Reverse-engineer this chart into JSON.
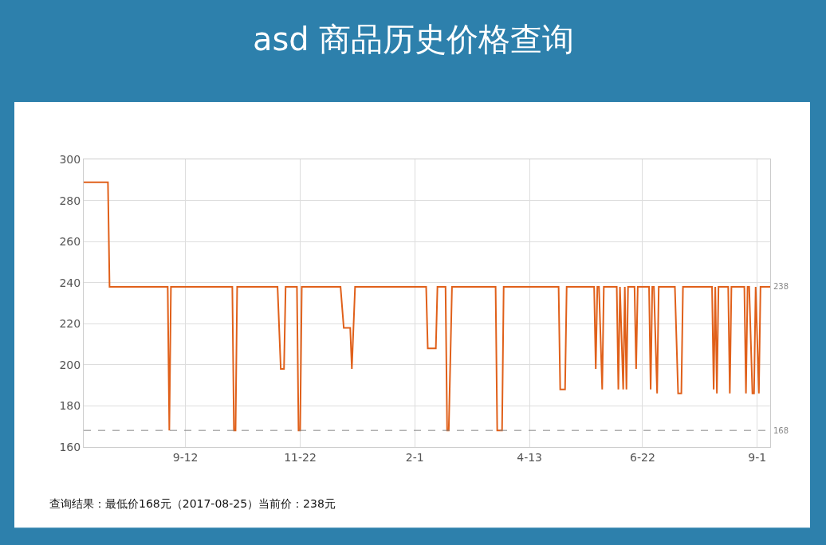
{
  "chart_data": {
    "type": "line",
    "title": "asd 商品历史价格查询",
    "x": [
      "2017-07-11",
      "2017-07-26",
      "2017-07-27",
      "2017-09-01",
      "2017-09-02",
      "2017-09-03",
      "2017-10-11",
      "2017-10-12",
      "2017-10-13",
      "2017-10-14",
      "2017-11-08",
      "2017-11-10",
      "2017-11-12",
      "2017-11-13",
      "2017-11-20",
      "2017-11-21",
      "2017-11-22",
      "2017-11-23",
      "2017-12-17",
      "2017-12-19",
      "2017-12-23",
      "2017-12-24",
      "2017-12-26",
      "2018-02-08",
      "2018-02-09",
      "2018-02-14",
      "2018-02-15",
      "2018-02-20",
      "2018-02-21",
      "2018-02-22",
      "2018-02-24",
      "2018-03-23",
      "2018-03-24",
      "2018-03-27",
      "2018-03-28",
      "2018-05-01",
      "2018-05-02",
      "2018-05-05",
      "2018-05-06",
      "2018-05-23",
      "2018-05-24",
      "2018-05-25",
      "2018-05-26",
      "2018-05-28",
      "2018-05-29",
      "2018-06-06",
      "2018-06-07",
      "2018-06-08",
      "2018-06-10",
      "2018-06-11",
      "2018-06-12",
      "2018-06-13",
      "2018-06-17",
      "2018-06-18",
      "2018-06-19",
      "2018-06-26",
      "2018-06-27",
      "2018-06-28",
      "2018-06-29",
      "2018-07-01",
      "2018-07-02",
      "2018-07-12",
      "2018-07-14",
      "2018-07-16",
      "2018-07-17",
      "2018-08-04",
      "2018-08-05",
      "2018-08-06",
      "2018-08-07",
      "2018-08-08",
      "2018-08-14",
      "2018-08-15",
      "2018-08-16",
      "2018-08-24",
      "2018-08-25",
      "2018-08-26",
      "2018-08-27",
      "2018-08-29",
      "2018-08-30",
      "2018-08-31",
      "2018-09-02",
      "2018-09-03",
      "2018-09-09"
    ],
    "series": [
      {
        "color": "#e0601a",
        "values": [
          289,
          289,
          238,
          238,
          168,
          238,
          238,
          168,
          168,
          238,
          238,
          198,
          198,
          238,
          238,
          168,
          168,
          238,
          238,
          218,
          218,
          198,
          238,
          238,
          208,
          208,
          238,
          238,
          168,
          168,
          238,
          238,
          168,
          168,
          238,
          238,
          188,
          188,
          238,
          238,
          198,
          238,
          238,
          188,
          238,
          238,
          188,
          238,
          188,
          238,
          188,
          238,
          238,
          198,
          238,
          238,
          188,
          238,
          238,
          186,
          238,
          238,
          186,
          186,
          238,
          238,
          188,
          238,
          186,
          238,
          238,
          186,
          238,
          238,
          186,
          238,
          238,
          186,
          186,
          238,
          186,
          238,
          238
        ]
      }
    ],
    "xlim": [
      "2017-07-11",
      "2018-09-09"
    ],
    "xticks": [
      {
        "value": "2017-09-12",
        "label": "9-12"
      },
      {
        "value": "2017-11-22",
        "label": "11-22"
      },
      {
        "value": "2018-02-01",
        "label": "2-1"
      },
      {
        "value": "2018-04-13",
        "label": "4-13"
      },
      {
        "value": "2018-06-22",
        "label": "6-22"
      },
      {
        "value": "2018-09-01",
        "label": "9-1"
      }
    ],
    "ylim": [
      160,
      300
    ],
    "yticks": [
      160,
      180,
      200,
      220,
      240,
      260,
      280,
      300
    ],
    "grid": true,
    "marker": "none",
    "line_style": "solid",
    "ref_lines": [
      {
        "axis": "y",
        "value": 168,
        "label": "168",
        "color": "#888888",
        "line_style": "dashed"
      }
    ],
    "annotations": [
      {
        "text": "238",
        "x": "2018-09-09",
        "y": 238
      },
      "查询结果：最低价168元（2017-08-25）当前价：238元"
    ]
  }
}
